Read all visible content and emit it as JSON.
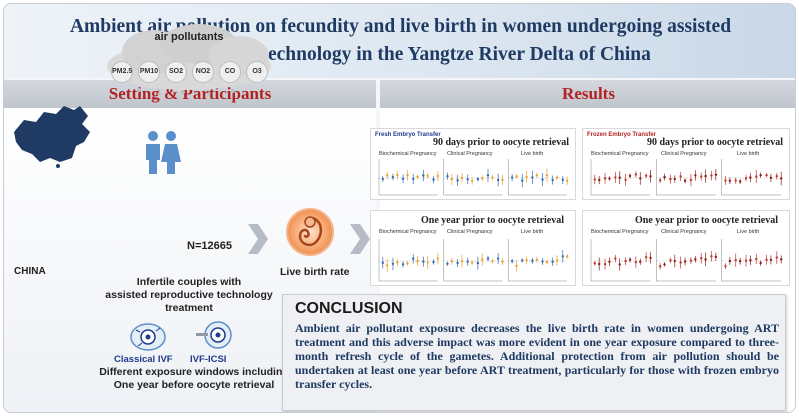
{
  "title": {
    "line1": "Ambient air pollution on fecundity and live birth in women undergoing assisted",
    "line2": "reproductive technology in the Yangtze River Delta of China"
  },
  "sections": {
    "left": "Setting & Participants",
    "right": "Results"
  },
  "setting": {
    "cloud_label": "air pollutants",
    "pollutants": [
      "PM2.5",
      "PM10",
      "SO2",
      "NO2",
      "CO",
      "O3"
    ],
    "country": "CHINA",
    "sample": "N=12665",
    "participants_line1": "Infertile couples with",
    "participants_line2": "assisted reproductive technology treatment",
    "outcome": "Live birth rate",
    "procedure1": "Classical IVF",
    "procedure2": "IVF-ICSI",
    "windows_line1": "Different exposure windows including",
    "windows_line2": "One year before oocyte retrieval"
  },
  "results": {
    "fresh_tag": "Fresh Embryo Transfer",
    "frozen_tag": "Frozen Embryo Transfer",
    "window1": "90 days prior to oocyte retrieval",
    "window2": "One year prior to oocyte retrieval",
    "subplots": [
      "Biochemical Pregnancy",
      "Clinical Pregnancy",
      "Live birth"
    ]
  },
  "conclusion": {
    "heading": "CONCLUSION",
    "body": "Ambient air pollutant exposure decreases the live birth rate in women undergoing ART treatment and this adverse impact was more evident in one year exposure compared to three-month refresh cycle of the gametes. Additional protection from air pollution should be undertaken at least one year before ART treatment, particularly for those with frozen embryo transfer cycles."
  },
  "colors": {
    "title": "#1f3a63",
    "section_head": "#b22222",
    "fresh": "#1f3a8a",
    "frozen": "#b22222"
  }
}
